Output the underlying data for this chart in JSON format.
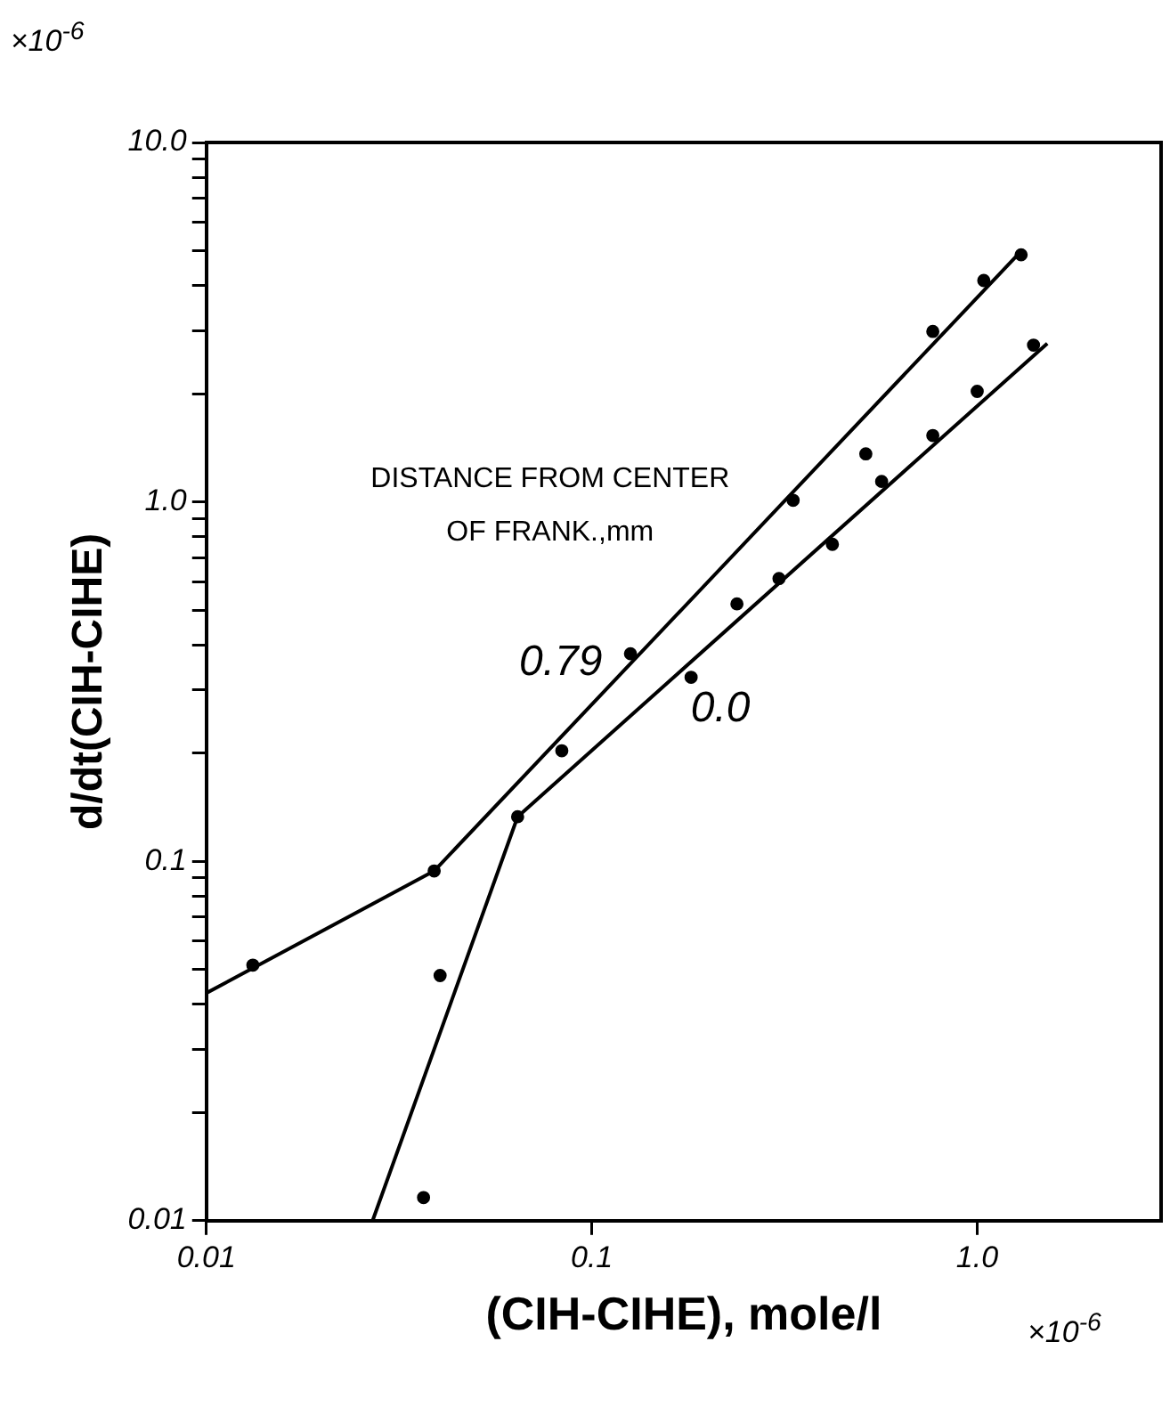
{
  "chart_data": {
    "type": "scatter",
    "xlabel": "(CIH-CIHE), mole/l",
    "ylabel": "d/dt(CIH-CIHE)",
    "legend_title": "DISTANCE FROM CENTER OF FRANK.,mm",
    "annotations": [
      "×10$^{-6}$",
      "×10$^{-6}$"
    ],
    "log": "xy",
    "grid": false,
    "legend": false,
    "marker": "circle",
    "xlim": [
      0.01,
      3
    ],
    "xticks": [
      0.01,
      0.1,
      {
        "value": 1,
        "label": "1.0"
      }
    ],
    "ylim": [
      0.01,
      10
    ],
    "yticks": [
      0.01,
      {
        "value": 0.02,
        "label": null
      },
      {
        "value": 0.03,
        "label": null
      },
      {
        "value": 0.04,
        "label": null
      },
      {
        "value": 0.05,
        "label": null
      },
      {
        "value": 0.06,
        "label": null
      },
      {
        "value": 0.07,
        "label": null
      },
      {
        "value": 0.08,
        "label": null
      },
      {
        "value": 0.09,
        "label": null
      },
      0.1,
      {
        "value": 0.2,
        "label": null
      },
      {
        "value": 0.3,
        "label": null
      },
      {
        "value": 0.4,
        "label": null
      },
      {
        "value": 0.5,
        "label": null
      },
      {
        "value": 0.6,
        "label": null
      },
      {
        "value": 0.7,
        "label": null
      },
      {
        "value": 0.8,
        "label": null
      },
      {
        "value": 0.9,
        "label": null
      },
      {
        "value": 1,
        "label": "1.0"
      },
      {
        "value": 2,
        "label": null
      },
      {
        "value": 3,
        "label": null
      },
      {
        "value": 4,
        "label": null
      },
      {
        "value": 5,
        "label": null
      },
      {
        "value": 6,
        "label": null
      },
      {
        "value": 7,
        "label": null
      },
      {
        "value": 8,
        "label": null
      },
      {
        "value": 9,
        "label": null
      },
      {
        "value": 10,
        "label": "10.0"
      }
    ],
    "series": [
      {
        "color": "#000000",
        "x": [
          0.0132,
          0.039,
          0.0836,
          0.126,
          0.333,
          0.514,
          0.767,
          1.04,
          1.3
        ],
        "values": [
          0.0514,
          0.094,
          0.203,
          0.378,
          1.01,
          1.36,
          2.98,
          4.13,
          4.87
        ]
      },
      {
        "color": "#000000",
        "x": [
          0.0366,
          0.0404,
          0.0642,
          0.181,
          0.238,
          0.306,
          0.421,
          0.565,
          0.767,
          1.0,
          1.4
        ],
        "values": [
          0.0116,
          0.0481,
          0.133,
          0.325,
          0.52,
          0.612,
          0.762,
          1.14,
          1.53,
          2.03,
          2.73
        ]
      },
      {
        "type": "line",
        "name": "0.79",
        "color": "#000000",
        "marker": "none",
        "x": [
          0.01,
          0.039,
          1.28
        ],
        "values": [
          0.043,
          0.094,
          4.9
        ]
      },
      {
        "type": "line",
        "name": "0.0",
        "color": "#000000",
        "marker": "none",
        "x": [
          0.027,
          0.0642,
          1.52
        ],
        "values": [
          0.01,
          0.133,
          2.76
        ]
      }
    ]
  }
}
